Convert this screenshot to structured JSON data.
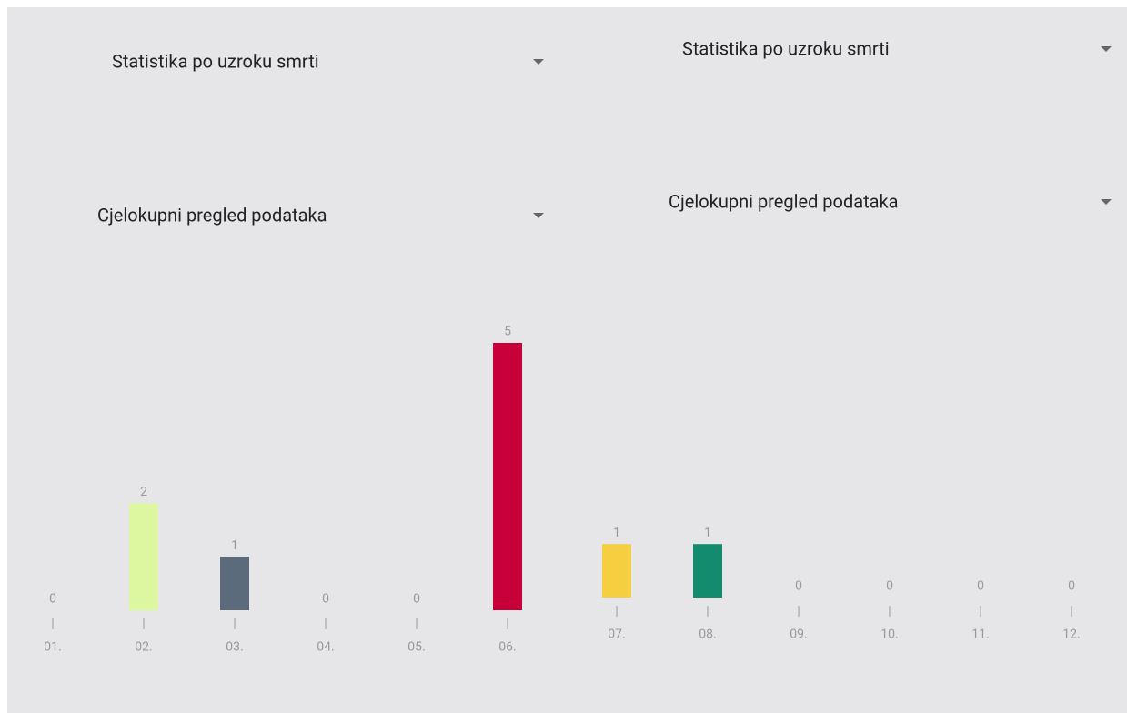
{
  "panels": [
    {
      "dropdowns": [
        "Statistika po uzroku smrti",
        "Cjelokupni pregled podataka"
      ]
    },
    {
      "dropdowns": [
        "Statistika po uzroku smrti",
        "Cjelokupni pregled podataka"
      ]
    }
  ],
  "chart_data": [
    {
      "type": "bar",
      "categories": [
        "01.",
        "02.",
        "03.",
        "04.",
        "05.",
        "06."
      ],
      "values": [
        0,
        2,
        1,
        0,
        0,
        5
      ],
      "colors": [
        null,
        "#dcf7a0",
        "#5b6b7b",
        null,
        null,
        "#c8003a"
      ]
    },
    {
      "type": "bar",
      "categories": [
        "07.",
        "08.",
        "09.",
        "10.",
        "11.",
        "12."
      ],
      "values": [
        1,
        1,
        0,
        0,
        0,
        0
      ],
      "colors": [
        "#f5cf40",
        "#138c6e",
        null,
        null,
        null,
        null
      ]
    }
  ]
}
